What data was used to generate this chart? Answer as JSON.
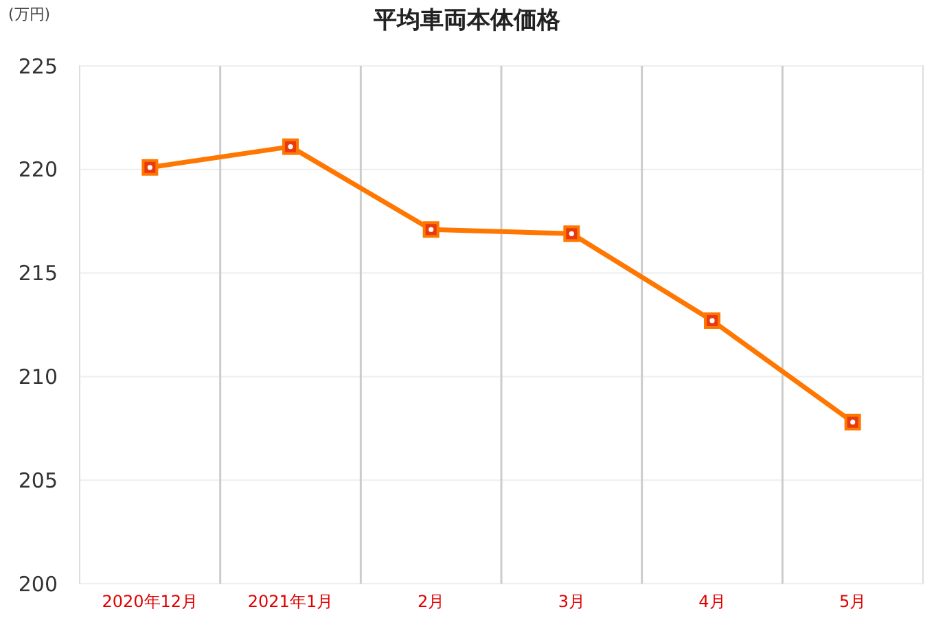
{
  "chart_data": {
    "type": "line",
    "title": "平均車両本体価格",
    "ylabel": "(万円)",
    "categories": [
      "2020年12月",
      "2021年1月",
      "2月",
      "3月",
      "4月",
      "5月"
    ],
    "series": [
      {
        "color": "#ff7700",
        "values": [
          220.1,
          221.1,
          217.1,
          216.9,
          212.7,
          207.8
        ]
      }
    ],
    "ylim": [
      200,
      225
    ],
    "yticks": [
      200,
      205,
      210,
      215,
      220,
      225
    ],
    "grid": true,
    "marker": "square",
    "line_style": "solid"
  }
}
